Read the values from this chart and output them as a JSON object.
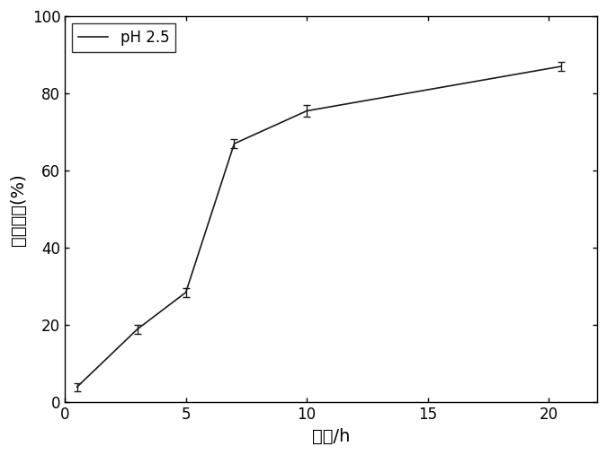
{
  "x": [
    0.5,
    3,
    5,
    7,
    10,
    20.5
  ],
  "y": [
    4.0,
    19.0,
    28.5,
    67.0,
    75.5,
    87.0
  ],
  "yerr": [
    1.0,
    1.2,
    1.2,
    1.2,
    1.5,
    1.2
  ],
  "xlim": [
    0,
    22
  ],
  "ylim": [
    0,
    100
  ],
  "xticks": [
    0,
    5,
    10,
    15,
    20
  ],
  "yticks": [
    0,
    20,
    40,
    60,
    80,
    100
  ],
  "xlabel": "时间/h",
  "ylabel": "释香精量(%)",
  "legend_label": "pH 2.5",
  "line_color": "#1a1a1a",
  "line_width": 1.2,
  "capsize": 3,
  "elinewidth": 1.0,
  "label_fontsize": 14,
  "tick_fontsize": 12,
  "legend_fontsize": 12,
  "background_color": "#ffffff"
}
